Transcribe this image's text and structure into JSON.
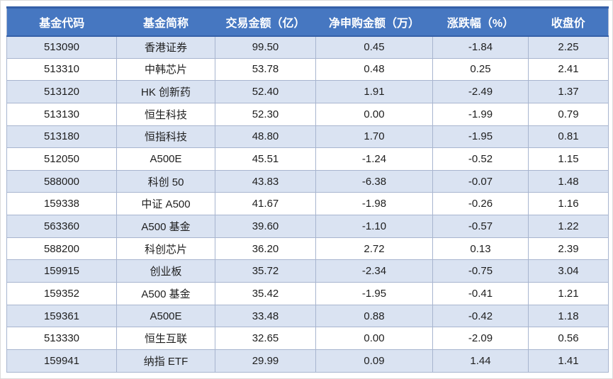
{
  "colors": {
    "header_bg": "#4677C1",
    "header_text": "#FFFFFF",
    "header_accent": "#3560A8",
    "band_bg": "#DAE3F2",
    "row_bg": "#FFFFFF",
    "border": "#A8B5CF",
    "text": "#1E1E1E"
  },
  "chart_data": {
    "type": "table",
    "column_keys": [
      "code",
      "name",
      "amount",
      "net_purchase",
      "change_pct",
      "close"
    ],
    "columns": [
      "基金代码",
      "基金简称",
      "交易金额（亿）",
      "净申购金额（万）",
      "涨跌幅（%）",
      "收盘价"
    ],
    "rows": [
      [
        "513090",
        "香港证券",
        "99.50",
        "0.45",
        "-1.84",
        "2.25"
      ],
      [
        "513310",
        "中韩芯片",
        "53.78",
        "0.48",
        "0.25",
        "2.41"
      ],
      [
        "513120",
        "HK 创新药",
        "52.40",
        "1.91",
        "-2.49",
        "1.37"
      ],
      [
        "513130",
        "恒生科技",
        "52.30",
        "0.00",
        "-1.99",
        "0.79"
      ],
      [
        "513180",
        "恒指科技",
        "48.80",
        "1.70",
        "-1.95",
        "0.81"
      ],
      [
        "512050",
        "A500E",
        "45.51",
        "-1.24",
        "-0.52",
        "1.15"
      ],
      [
        "588000",
        "科创 50",
        "43.83",
        "-6.38",
        "-0.07",
        "1.48"
      ],
      [
        "159338",
        "中证 A500",
        "41.67",
        "-1.98",
        "-0.26",
        "1.16"
      ],
      [
        "563360",
        "A500 基金",
        "39.60",
        "-1.10",
        "-0.57",
        "1.22"
      ],
      [
        "588200",
        "科创芯片",
        "36.20",
        "2.72",
        "0.13",
        "2.39"
      ],
      [
        "159915",
        "创业板",
        "35.72",
        "-2.34",
        "-0.75",
        "3.04"
      ],
      [
        "159352",
        "A500 基金",
        "35.42",
        "-1.95",
        "-0.41",
        "1.21"
      ],
      [
        "159361",
        "A500E",
        "33.48",
        "0.88",
        "-0.42",
        "1.18"
      ],
      [
        "513330",
        "恒生互联",
        "32.65",
        "0.00",
        "-2.09",
        "0.56"
      ],
      [
        "159941",
        "纳指 ETF",
        "29.99",
        "0.09",
        "1.44",
        "1.41"
      ]
    ]
  }
}
